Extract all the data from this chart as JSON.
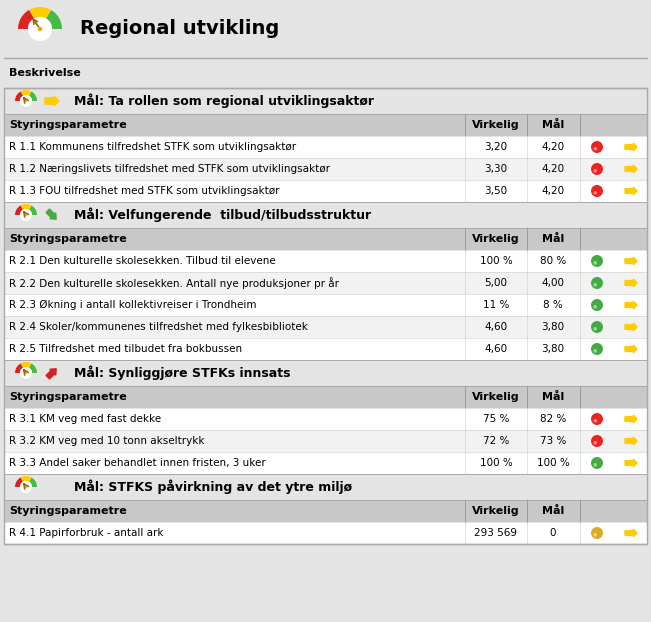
{
  "title": "Regional utvikling",
  "beskrivelse": "Beskrivelse",
  "bg_color": "#e4e4e4",
  "white": "#ffffff",
  "col_header_bg": "#c8c8c8",
  "border_color": "#aaaaaa",
  "sections": [
    {
      "title": "Mål: Ta rollen som regional utviklingsaktør",
      "arrow_type": "right",
      "rows": [
        {
          "label": "R 1.1 Kommunens tilfredshet STFK som utviklingsaktør",
          "virkelig": "3,20",
          "mål": "4,20",
          "dot": "red"
        },
        {
          "label": "R 1.2 Næringslivets tilfredshet med STFK som utviklingsaktør",
          "virkelig": "3,30",
          "mål": "4,20",
          "dot": "red"
        },
        {
          "label": "R 1.3 FOU tilfredshet med STFK som utviklingsaktør",
          "virkelig": "3,50",
          "mål": "4,20",
          "dot": "red"
        }
      ]
    },
    {
      "title": "Mål: Velfungerende  tilbud/tilbudsstruktur",
      "arrow_type": "up_right",
      "rows": [
        {
          "label": "R 2.1 Den kulturelle skolesekken. Tilbud til elevene",
          "virkelig": "100 %",
          "mål": "80 %",
          "dot": "green"
        },
        {
          "label": "R 2.2 Den kulturelle skolesekken. Antall nye produksjoner pr år",
          "virkelig": "5,00",
          "mål": "4,00",
          "dot": "green"
        },
        {
          "label": "R 2.3 Økning i antall kollektivreiser i Trondheim",
          "virkelig": "11 %",
          "mål": "8 %",
          "dot": "green"
        },
        {
          "label": "R 2.4 Skoler/kommunenes tilfredshet med fylkesbibliotek",
          "virkelig": "4,60",
          "mål": "3,80",
          "dot": "green"
        },
        {
          "label": "R 2.5 Tilfredshet med tilbudet fra bokbussen",
          "virkelig": "4,60",
          "mål": "3,80",
          "dot": "green"
        }
      ]
    },
    {
      "title": "Mål: Synliggjøre STFKs innsats",
      "arrow_type": "down_right",
      "rows": [
        {
          "label": "R 3.1 KM veg med fast dekke",
          "virkelig": "75 %",
          "mål": "82 %",
          "dot": "red"
        },
        {
          "label": "R 3.2 KM veg med 10 tonn akseltrykk",
          "virkelig": "72 %",
          "mål": "73 %",
          "dot": "red"
        },
        {
          "label": "R 3.3 Andel saker behandlet innen fristen, 3 uker",
          "virkelig": "100 %",
          "mål": "100 %",
          "dot": "green"
        }
      ]
    },
    {
      "title": "Mål: STFKS påvirkning av det ytre miljø",
      "arrow_type": "none",
      "rows": [
        {
          "label": "R 4.1 Papirforbruk - antall ark",
          "virkelig": "293 569",
          "mål": "0",
          "dot": "yellow"
        }
      ]
    }
  ]
}
